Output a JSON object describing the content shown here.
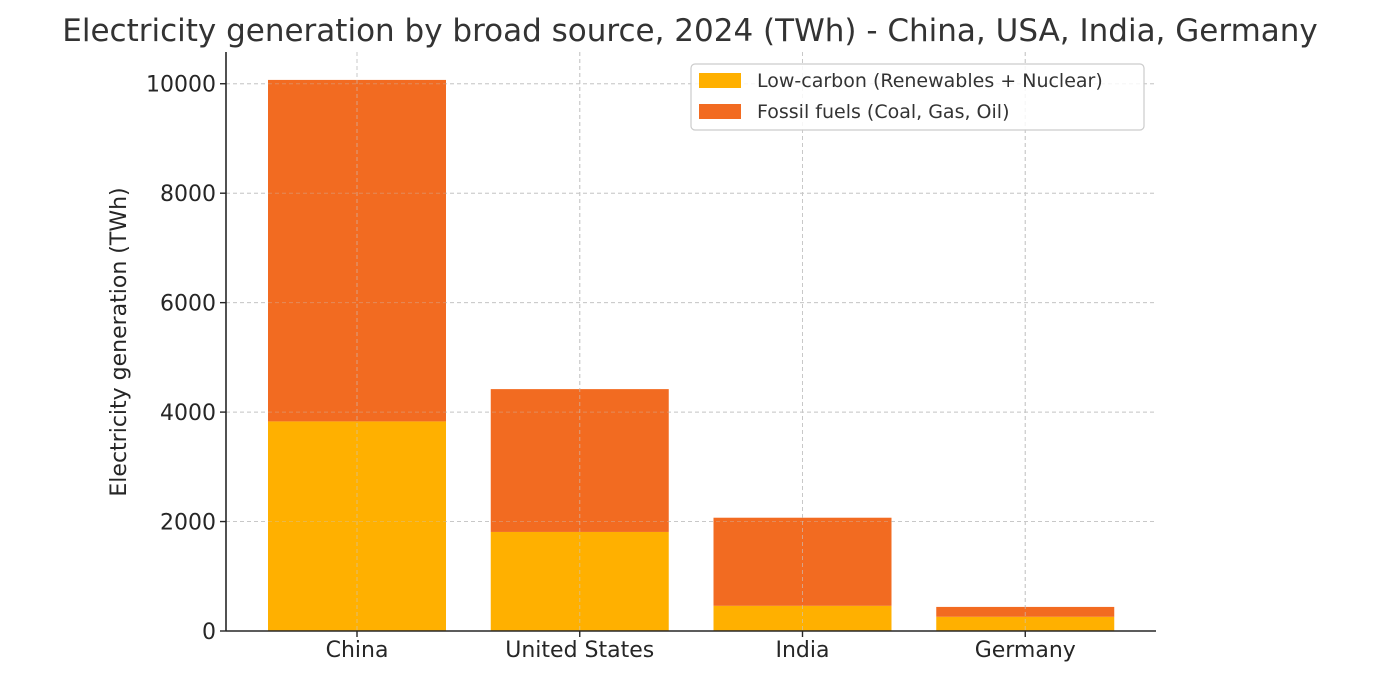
{
  "chart_data": {
    "type": "bar",
    "stacked": true,
    "title": "Electricity generation by broad source, 2024 (TWh) - China, USA, India, Germany",
    "xlabel": "",
    "ylabel": "Electricity generation (TWh)",
    "categories": [
      "China",
      "United States",
      "India",
      "Germany"
    ],
    "series": [
      {
        "name": "Low-carbon (Renewables + Nuclear)",
        "color": "#FFB000",
        "values": [
          3830,
          1810,
          460,
          260
        ]
      },
      {
        "name": "Fossil fuels (Coal, Gas, Oil)",
        "color": "#F26B21",
        "values": [
          6240,
          2610,
          1610,
          180
        ]
      }
    ],
    "ylim": [
      0,
      10580
    ],
    "yticks": [
      0,
      2000,
      4000,
      6000,
      8000,
      10000
    ],
    "ytick_labels": [
      "0",
      "2000",
      "4000",
      "6000",
      "8000",
      "10000"
    ],
    "grid": true,
    "legend_position": "top-right"
  }
}
